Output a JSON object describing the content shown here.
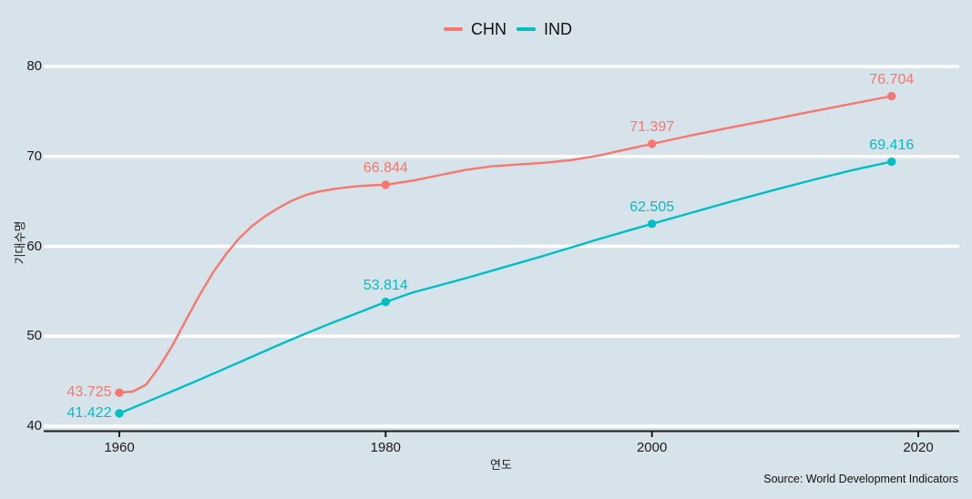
{
  "figure": {
    "background_color": "#d7e3ea",
    "grid_color": "#ffffff",
    "axis_line_color": "#1a1a1a",
    "text_color": "#1c1c1c"
  },
  "legend": {
    "items": [
      {
        "label": "CHN",
        "color": "#F8766D"
      },
      {
        "label": "IND",
        "color": "#00BFC4"
      }
    ]
  },
  "source": "Source: World Development Indicators",
  "chart_data": {
    "type": "line",
    "title": "",
    "xlabel": "연도",
    "ylabel": "기대수명",
    "x_ticks": [
      1960,
      1980,
      2000,
      2020
    ],
    "y_ticks": [
      40,
      50,
      60,
      70,
      80
    ],
    "xlim": [
      1954.3,
      2023.1
    ],
    "ylim": [
      39.5,
      83.5
    ],
    "grid": "horizontal major gridlines, white, no vertical gridlines",
    "legend_position": "top center",
    "series": [
      {
        "name": "CHN",
        "color": "#F8766D",
        "labeled_points": [
          {
            "x": 1960,
            "y": 43.725,
            "label": "43.725",
            "label_side": "left"
          },
          {
            "x": 1980,
            "y": 66.844,
            "label": "66.844",
            "label_side": "above"
          },
          {
            "x": 2000,
            "y": 71.397,
            "label": "71.397",
            "label_side": "above"
          },
          {
            "x": 2018,
            "y": 76.704,
            "label": "76.704",
            "label_side": "above"
          }
        ],
        "points": [
          [
            1960,
            43.725
          ],
          [
            1961,
            43.85
          ],
          [
            1962,
            44.6
          ],
          [
            1963,
            46.6
          ],
          [
            1964,
            49.0
          ],
          [
            1965,
            51.8
          ],
          [
            1966,
            54.5
          ],
          [
            1967,
            57.0
          ],
          [
            1968,
            59.1
          ],
          [
            1969,
            60.9
          ],
          [
            1970,
            62.3
          ],
          [
            1971,
            63.4
          ],
          [
            1972,
            64.3
          ],
          [
            1973,
            65.1
          ],
          [
            1974,
            65.7
          ],
          [
            1975,
            66.1
          ],
          [
            1976,
            66.35
          ],
          [
            1977,
            66.55
          ],
          [
            1978,
            66.7
          ],
          [
            1979,
            66.78
          ],
          [
            1980,
            66.844
          ],
          [
            1982,
            67.3
          ],
          [
            1984,
            67.9
          ],
          [
            1986,
            68.5
          ],
          [
            1988,
            68.9
          ],
          [
            1990,
            69.1
          ],
          [
            1992,
            69.3
          ],
          [
            1994,
            69.6
          ],
          [
            1996,
            70.1
          ],
          [
            1998,
            70.75
          ],
          [
            2000,
            71.397
          ],
          [
            2003,
            72.35
          ],
          [
            2006,
            73.25
          ],
          [
            2009,
            74.1
          ],
          [
            2012,
            75.0
          ],
          [
            2015,
            75.85
          ],
          [
            2018,
            76.704
          ]
        ]
      },
      {
        "name": "IND",
        "color": "#00BFC4",
        "labeled_points": [
          {
            "x": 1960,
            "y": 41.422,
            "label": "41.422",
            "label_side": "left"
          },
          {
            "x": 1980,
            "y": 53.814,
            "label": "53.814",
            "label_side": "above"
          },
          {
            "x": 2000,
            "y": 62.505,
            "label": "62.505",
            "label_side": "above"
          },
          {
            "x": 2018,
            "y": 69.416,
            "label": "69.416",
            "label_side": "above"
          }
        ],
        "points": [
          [
            1960,
            41.422
          ],
          [
            1962,
            42.65
          ],
          [
            1964,
            43.9
          ],
          [
            1966,
            45.15
          ],
          [
            1968,
            46.45
          ],
          [
            1970,
            47.75
          ],
          [
            1972,
            49.05
          ],
          [
            1974,
            50.3
          ],
          [
            1976,
            51.5
          ],
          [
            1978,
            52.65
          ],
          [
            1980,
            53.814
          ],
          [
            1982,
            54.85
          ],
          [
            1984,
            55.65
          ],
          [
            1986,
            56.45
          ],
          [
            1988,
            57.3
          ],
          [
            1990,
            58.15
          ],
          [
            1992,
            59.0
          ],
          [
            1994,
            59.9
          ],
          [
            1996,
            60.8
          ],
          [
            1998,
            61.65
          ],
          [
            2000,
            62.505
          ],
          [
            2003,
            63.75
          ],
          [
            2006,
            65.0
          ],
          [
            2009,
            66.2
          ],
          [
            2012,
            67.35
          ],
          [
            2015,
            68.45
          ],
          [
            2018,
            69.416
          ]
        ]
      }
    ]
  }
}
